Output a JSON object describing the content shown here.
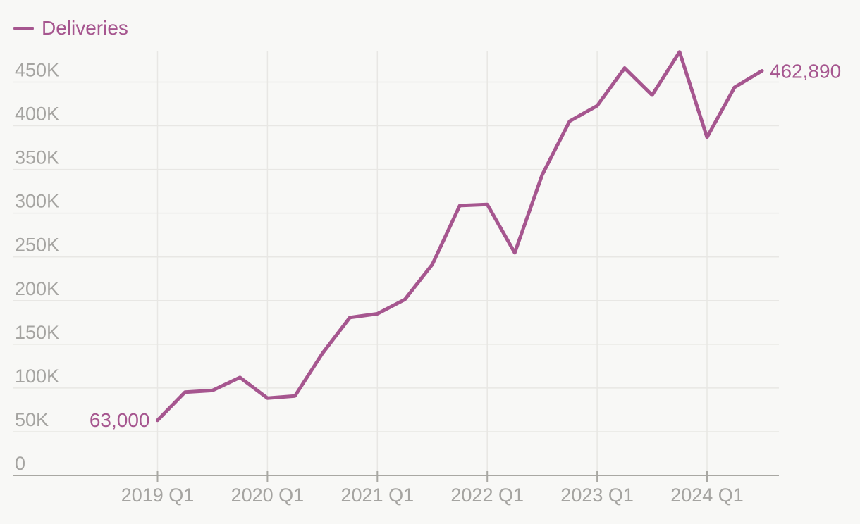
{
  "legend": {
    "label": "Deliveries"
  },
  "colors": {
    "background": "#f8f8f6",
    "grid": "#e8e7e4",
    "axis_line": "#a9a8a3",
    "axis_text": "#a5a4a1",
    "line": "#a6568f"
  },
  "chart_data": {
    "type": "line",
    "title": "",
    "xlabel": "",
    "ylabel": "",
    "x": [
      "2019 Q1",
      "2019 Q2",
      "2019 Q3",
      "2019 Q4",
      "2020 Q1",
      "2020 Q2",
      "2020 Q3",
      "2020 Q4",
      "2021 Q1",
      "2021 Q2",
      "2021 Q3",
      "2021 Q4",
      "2022 Q1",
      "2022 Q2",
      "2022 Q3",
      "2022 Q4",
      "2023 Q1",
      "2023 Q2",
      "2023 Q3",
      "2023 Q4",
      "2024 Q1",
      "2024 Q2",
      "2024 Q3"
    ],
    "series": [
      {
        "name": "Deliveries",
        "values": [
          63000,
          95356,
          97186,
          112095,
          88496,
          90891,
          139593,
          180667,
          184877,
          201304,
          241391,
          308650,
          310048,
          254695,
          343830,
          405278,
          422875,
          466140,
          435059,
          484507,
          386810,
          443956,
          462890
        ]
      }
    ],
    "x_tick_labels": [
      "2019 Q1",
      "2020 Q1",
      "2021 Q1",
      "2022 Q1",
      "2023 Q1",
      "2024 Q1"
    ],
    "y_ticks": [
      0,
      50000,
      100000,
      150000,
      200000,
      250000,
      300000,
      350000,
      400000,
      450000
    ],
    "y_tick_labels": [
      "0",
      "50K",
      "100K",
      "150K",
      "200K",
      "250K",
      "300K",
      "350K",
      "400K",
      "450K"
    ],
    "ylim": [
      0,
      500000
    ],
    "grid": true,
    "legend_position": "top-left",
    "first_point_label": "63,000",
    "last_point_label": "462,890"
  }
}
